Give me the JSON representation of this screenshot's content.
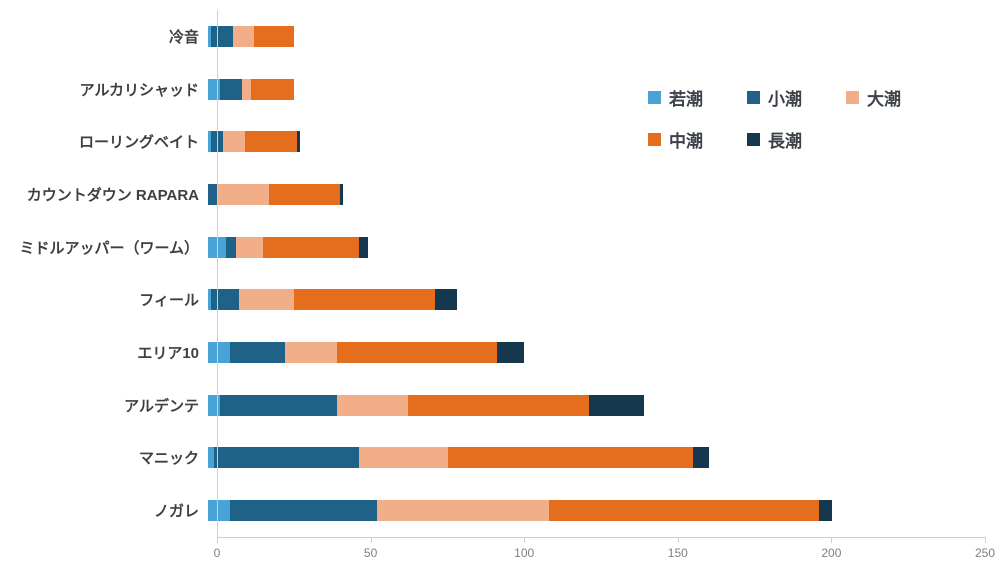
{
  "chart_data": {
    "type": "bar",
    "orientation": "horizontal",
    "stacked": true,
    "title": "",
    "xlabel": "",
    "ylabel": "",
    "xlim": [
      0,
      250
    ],
    "x_ticks": [
      0,
      50,
      100,
      150,
      200,
      250
    ],
    "grid": false,
    "legend_position": "top-right",
    "categories": [
      "冷音",
      "アルカリシャッド",
      "ローリングベイト",
      "カウントダウン RAPARA",
      "ミドルアッパー（ワーム）",
      "フィール",
      "エリア10",
      "アルデンテ",
      "マニック",
      "ノガレ"
    ],
    "series": [
      {
        "name": "若潮",
        "color": "#4aa3d6",
        "values": [
          1,
          4,
          1,
          0,
          6,
          1,
          7,
          4,
          2,
          7
        ]
      },
      {
        "name": "小潮",
        "color": "#1e6287",
        "values": [
          7,
          7,
          4,
          3,
          3,
          9,
          18,
          38,
          47,
          48
        ]
      },
      {
        "name": "大潮",
        "color": "#f1ae88",
        "values": [
          7,
          3,
          7,
          17,
          9,
          18,
          17,
          23,
          29,
          56
        ]
      },
      {
        "name": "中潮",
        "color": "#e56e1e",
        "values": [
          13,
          14,
          17,
          23,
          31,
          46,
          52,
          59,
          80,
          88
        ]
      },
      {
        "name": "長潮",
        "color": "#15384e",
        "values": [
          0,
          0,
          1,
          1,
          3,
          7,
          9,
          18,
          5,
          4
        ]
      }
    ],
    "totals": [
      28,
      28,
      30,
      44,
      52,
      81,
      103,
      142,
      163,
      203
    ],
    "axis_color": "#cfcfcf",
    "tick_label_color": "#7f7f7f",
    "category_label_color": "#3f3f3f",
    "legend_text_color": "#3d4149"
  }
}
